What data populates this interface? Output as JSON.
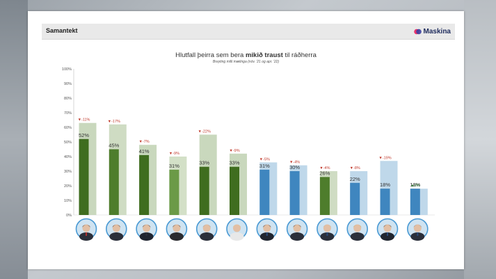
{
  "header": {
    "title": "Samantekt",
    "logo_text": "Maskina"
  },
  "chart_data": {
    "type": "bar",
    "title_pre": "Hlutfall þeirra sem bera ",
    "title_bold": "mikið traust",
    "title_post": " til ráðherra",
    "subtitle": "Breyting milli mælinga (nóv. '21 og apr. '22)",
    "ylim": [
      0,
      100
    ],
    "yticks": [
      "0%",
      "10%",
      "20%",
      "30%",
      "40%",
      "50%",
      "60%",
      "70%",
      "80%",
      "90%",
      "100%"
    ],
    "grid": false,
    "bars": [
      {
        "value": 52,
        "label": "52%",
        "previous": 63,
        "change": "▼-11%",
        "direction": "down",
        "color": "#3f6d1f",
        "prev_color": "#c9d8bd"
      },
      {
        "value": 45,
        "label": "45%",
        "previous": 62,
        "change": "▼-17%",
        "direction": "down",
        "color": "#4e7d2c",
        "prev_color": "#cfdcc3"
      },
      {
        "value": 41,
        "label": "41%",
        "previous": 48,
        "change": "▼-7%",
        "direction": "down",
        "color": "#3f6d1f",
        "prev_color": "#c9d8bd"
      },
      {
        "value": 31,
        "label": "31%",
        "previous": 40,
        "change": "▼-9%",
        "direction": "down",
        "color": "#6b9a47",
        "prev_color": "#d3e0c7"
      },
      {
        "value": 33,
        "label": "33%",
        "previous": 55,
        "change": "▼-22%",
        "direction": "down",
        "color": "#3f6d1f",
        "prev_color": "#c9d8bd"
      },
      {
        "value": 33,
        "label": "33%",
        "previous": 42,
        "change": "▼-9%",
        "direction": "down",
        "color": "#3f6d1f",
        "prev_color": "#c9d8bd"
      },
      {
        "value": 31,
        "label": "31%",
        "previous": 36,
        "change": "▼-5%",
        "direction": "down",
        "color": "#3f86bf",
        "prev_color": "#bfd8ea"
      },
      {
        "value": 30,
        "label": "30%",
        "previous": 34,
        "change": "▼-4%",
        "direction": "down",
        "color": "#3f86bf",
        "prev_color": "#bfd8ea"
      },
      {
        "value": 26,
        "label": "26%",
        "previous": 30,
        "change": "▼-4%",
        "direction": "down",
        "color": "#4e7d2c",
        "prev_color": "#cfdcc3"
      },
      {
        "value": 22,
        "label": "22%",
        "previous": 30,
        "change": "▼-8%",
        "direction": "down",
        "color": "#3f86bf",
        "prev_color": "#bfd8ea"
      },
      {
        "value": 18,
        "label": "18%",
        "previous": 37,
        "change": "▼-19%",
        "direction": "down",
        "color": "#3f86bf",
        "prev_color": "#bfd8ea"
      },
      {
        "value": 18,
        "label": "18%",
        "previous": 18,
        "change": "▲0%",
        "direction": "up",
        "color": "#3f86bf",
        "prev_color": "#bfd8ea"
      }
    ],
    "avatars": [
      {
        "suit": "#2b2f3a",
        "hair": "#3a2a1e",
        "accent": "#b03030"
      },
      {
        "suit": "#2b2f3a",
        "hair": "#3b2419",
        "accent": "#2b2f3a"
      },
      {
        "suit": "#1f2430",
        "hair": "#2a2222",
        "accent": "#2b2f3a"
      },
      {
        "suit": "#2a2a2e",
        "hair": "#2e1d18",
        "accent": "#2a2a2e"
      },
      {
        "suit": "#2b2f3a",
        "hair": "#9a9a9a",
        "accent": "#2b2f3a"
      },
      {
        "suit": "#e8e8e8",
        "hair": "#d9c28a",
        "accent": "#e8e8e8"
      },
      {
        "suit": "#20252f",
        "hair": "#2a2222",
        "accent": "#2b4a7a"
      },
      {
        "suit": "#2b2f3a",
        "hair": "#3b2419",
        "accent": "#2b2f3a"
      },
      {
        "suit": "#2b2f3a",
        "hair": "#c9b79a",
        "accent": "#2b4a7a"
      },
      {
        "suit": "#2b2f3a",
        "hair": "#c9a75f",
        "accent": "#2b2f3a"
      },
      {
        "suit": "#20252f",
        "hair": "#3a2a1e",
        "accent": "#2b4a7a"
      },
      {
        "suit": "#2b2f3a",
        "hair": "#8a8a8a",
        "accent": "#2b4a7a"
      }
    ]
  }
}
